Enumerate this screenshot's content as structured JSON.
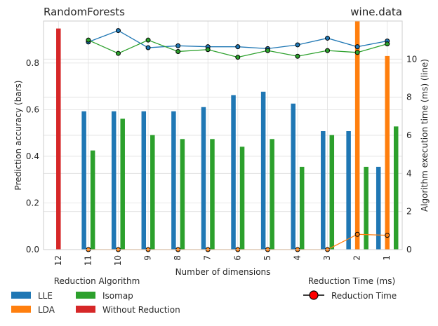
{
  "chart_data": {
    "type": "bar",
    "title_left": "RandomForests",
    "title_right": "wine.data",
    "xlabel": "Number of dimensions",
    "ylabel_left": "Prediction accuracy (bars)",
    "ylabel_right": "Algorithm execution time (ms) (line)",
    "categories": [
      "12",
      "11",
      "10",
      "9",
      "8",
      "7",
      "6",
      "5",
      "4",
      "3",
      "2",
      "1"
    ],
    "ylim_left": [
      0,
      0.98
    ],
    "yticks_left": [
      "0.0",
      "0.2",
      "0.4",
      "0.6",
      "0.8"
    ],
    "ylim_right": [
      0,
      12.0
    ],
    "yticks_right": [
      "0",
      "2",
      "4",
      "6",
      "8",
      "10"
    ],
    "grid": true,
    "bar_series": [
      {
        "name": "LLE",
        "color": "#1f77b4",
        "values": [
          null,
          0.593,
          0.593,
          0.593,
          0.593,
          0.611,
          0.662,
          0.677,
          0.626,
          0.508,
          0.508,
          0.355
        ]
      },
      {
        "name": "LDA",
        "color": "#ff7f0e",
        "values": [
          null,
          null,
          null,
          null,
          null,
          null,
          null,
          null,
          null,
          null,
          0.98,
          0.83
        ]
      },
      {
        "name": "Isomap",
        "color": "#2ca02c",
        "values": [
          null,
          0.425,
          0.561,
          0.491,
          0.474,
          0.474,
          0.441,
          0.474,
          0.355,
          0.491,
          0.355,
          0.528
        ]
      },
      {
        "name": "Without Reduction",
        "color": "#d62728",
        "values": [
          0.948,
          null,
          null,
          null,
          null,
          null,
          null,
          null,
          null,
          null,
          null,
          null
        ]
      }
    ],
    "line_series": [
      {
        "name": "LLE",
        "color": "#1f77b4",
        "values": [
          null,
          10.9,
          11.5,
          10.6,
          10.7,
          10.65,
          10.65,
          10.55,
          10.75,
          11.1,
          10.65,
          10.95
        ]
      },
      {
        "name": "LDA",
        "color": "#ff7f0e",
        "values": [
          null,
          0.0,
          0.0,
          0.0,
          0.0,
          0.0,
          0.0,
          0.0,
          0.0,
          0.0,
          0.8,
          0.75
        ]
      },
      {
        "name": "Isomap",
        "color": "#2ca02c",
        "values": [
          null,
          11.0,
          10.3,
          11.0,
          10.4,
          10.5,
          10.1,
          10.45,
          10.15,
          10.45,
          10.35,
          10.8
        ]
      }
    ],
    "legend_left": {
      "title": "Reduction Algorithm",
      "entries": [
        {
          "label": "LLE",
          "color": "#1f77b4"
        },
        {
          "label": "Isomap",
          "color": "#2ca02c"
        },
        {
          "label": "LDA",
          "color": "#ff7f0e"
        },
        {
          "label": "Without Reduction",
          "color": "#d62728"
        }
      ]
    },
    "legend_right": {
      "title": "Reduction Time (ms)",
      "entry": "Reduction Time",
      "marker_color": "#ff0000"
    }
  }
}
